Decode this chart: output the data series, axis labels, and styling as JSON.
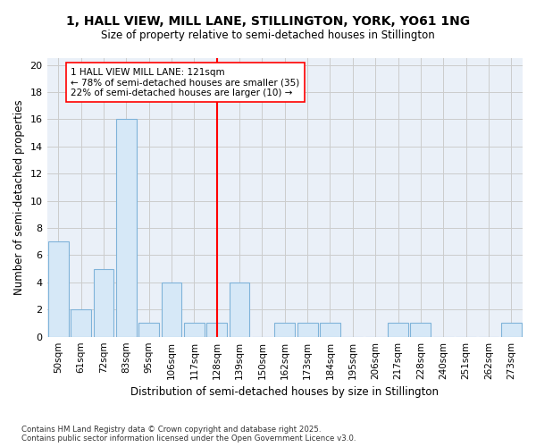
{
  "title": "1, HALL VIEW, MILL LANE, STILLINGTON, YORK, YO61 1NG",
  "subtitle": "Size of property relative to semi-detached houses in Stillington",
  "xlabel": "Distribution of semi-detached houses by size in Stillington",
  "ylabel": "Number of semi-detached properties",
  "bar_color": "#d6e8f7",
  "bar_edge_color": "#7fb3d9",
  "categories": [
    "50sqm",
    "61sqm",
    "72sqm",
    "83sqm",
    "95sqm",
    "106sqm",
    "117sqm",
    "128sqm",
    "139sqm",
    "150sqm",
    "162sqm",
    "173sqm",
    "184sqm",
    "195sqm",
    "206sqm",
    "217sqm",
    "228sqm",
    "240sqm",
    "251sqm",
    "262sqm",
    "273sqm"
  ],
  "values": [
    7,
    2,
    5,
    16,
    1,
    4,
    1,
    1,
    4,
    0,
    1,
    1,
    1,
    0,
    0,
    1,
    1,
    0,
    0,
    0,
    1
  ],
  "property_line_x": 7.0,
  "annotation_title": "1 HALL VIEW MILL LANE: 121sqm",
  "annotation_line1": "← 78% of semi-detached houses are smaller (35)",
  "annotation_line2": "22% of semi-detached houses are larger (10) →",
  "yticks": [
    0,
    2,
    4,
    6,
    8,
    10,
    12,
    14,
    16,
    18,
    20
  ],
  "grid_color": "#cccccc",
  "background_color": "#eaf0f8",
  "footer": "Contains HM Land Registry data © Crown copyright and database right 2025.\nContains public sector information licensed under the Open Government Licence v3.0."
}
